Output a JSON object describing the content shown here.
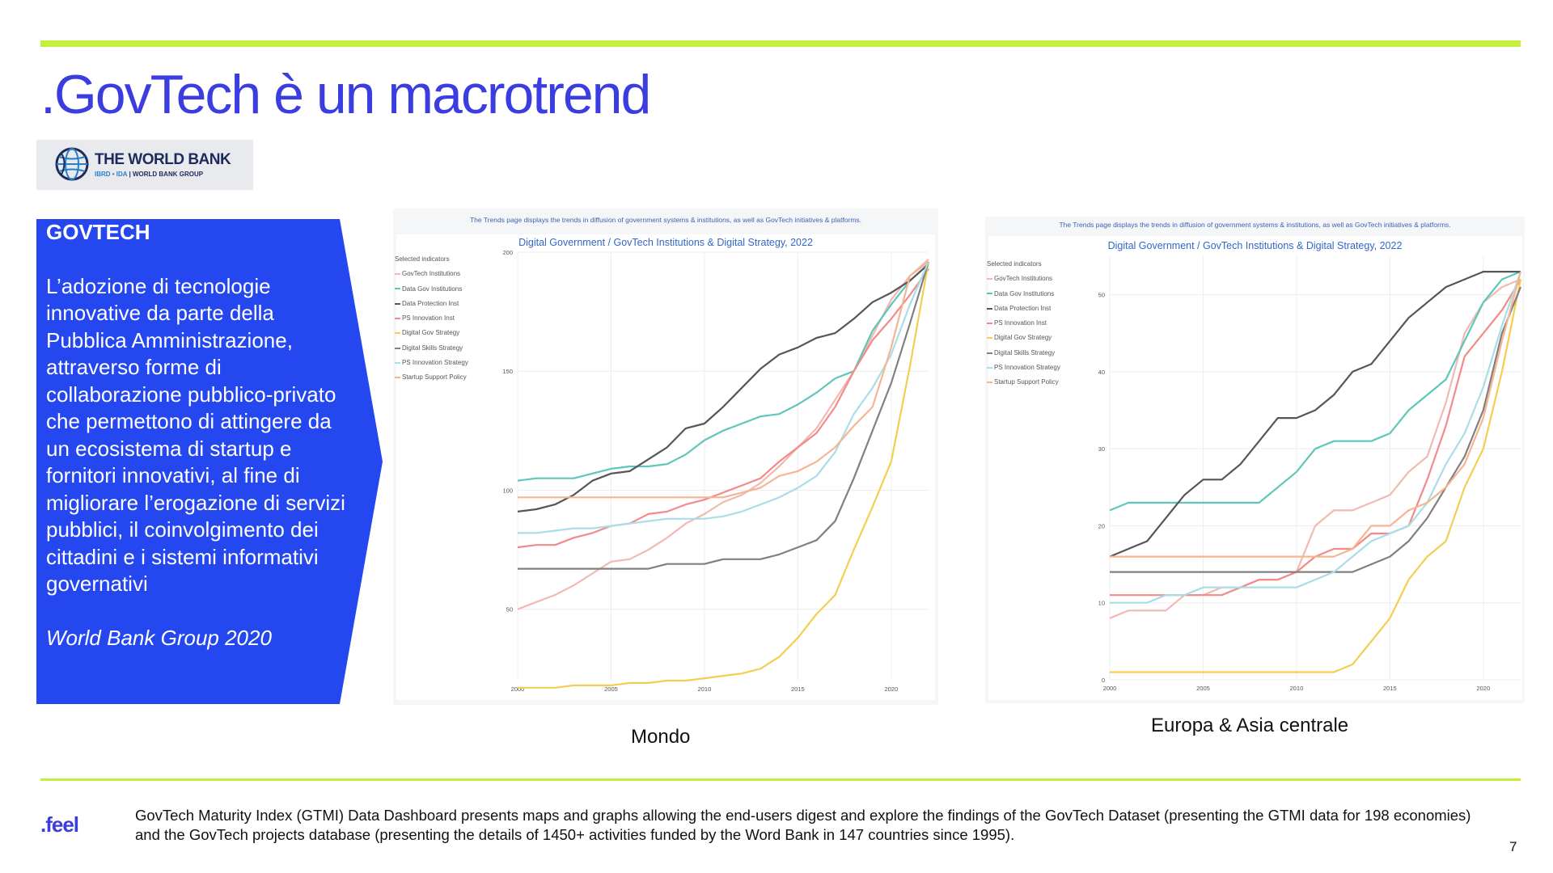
{
  "slide": {
    "title": ".GovTech è un macrotrend",
    "page_number": "7",
    "brand": ".feel",
    "footnote": "GovTech Maturity Index (GTMI) Data Dashboard presents maps and graphs allowing the end-users digest and explore the findings of the GovTech Dataset (presenting the GTMI data for 198 economies) and the GovTech projects database (presenting the details of 1450+ activities funded by the Word Bank in 147 countries since 1995)."
  },
  "logo": {
    "name": "THE WORLD BANK",
    "sub_a": "IBRD • IDA",
    "sub_b": "WORLD BANK GROUP"
  },
  "panel": {
    "heading": "GOVTECH",
    "body": "L’adozione di tecnologie innovative da parte della Pubblica Amministrazione, attraverso forme di collaborazione pubblico-privato che permettono di attingere da un ecosistema di startup e fornitori innovativi, al fine di migliorare l’erogazione di servizi pubblici, il coinvolgimento dei cittadini e i sistemi informativi governativi",
    "citation": "World Bank Group 2020",
    "color": "#2447f0"
  },
  "colors": {
    "accent_line": "#c4ef3a",
    "title": "#3b3de0"
  },
  "chart_data": [
    {
      "type": "line",
      "caption": "Mondo",
      "note": "The Trends page displays the trends in diffusion of government systems & institutions, as well as GovTech initiatives & platforms.",
      "title": "Digital Government / GovTech Institutions & Digital Strategy, 2022",
      "legend_title": "Selected indicators",
      "legend_placement": "left",
      "xlim": [
        2000,
        2022
      ],
      "ylim": [
        20,
        200
      ],
      "x_ticks": [
        "2000",
        "2005",
        "2010",
        "2015",
        "2020"
      ],
      "y_ticks": [
        "50",
        "100",
        "150",
        "200"
      ],
      "grid": true,
      "x": [
        2000,
        2001,
        2002,
        2003,
        2004,
        2005,
        2006,
        2007,
        2008,
        2009,
        2010,
        2011,
        2012,
        2013,
        2014,
        2015,
        2016,
        2017,
        2018,
        2019,
        2020,
        2021,
        2022
      ],
      "series": [
        {
          "name": "GovTech Institutions",
          "color": "#f2b9b0",
          "values": [
            50,
            53,
            56,
            60,
            65,
            70,
            71,
            75,
            80,
            86,
            90,
            95,
            98,
            103,
            110,
            118,
            126,
            138,
            150,
            165,
            180,
            190,
            197
          ]
        },
        {
          "name": "Data Gov Institutions",
          "color": "#5ec7ba",
          "values": [
            104,
            105,
            105,
            105,
            107,
            109,
            110,
            110,
            111,
            115,
            121,
            125,
            128,
            131,
            132,
            136,
            141,
            147,
            150,
            167,
            178,
            188,
            195
          ]
        },
        {
          "name": "Data Protection Inst",
          "color": "#565656",
          "values": [
            91,
            92,
            94,
            98,
            104,
            107,
            108,
            113,
            118,
            126,
            128,
            135,
            143,
            151,
            157,
            160,
            164,
            166,
            172,
            179,
            183,
            188,
            195
          ]
        },
        {
          "name": "PS Innovation Inst",
          "color": "#f28a8a",
          "values": [
            76,
            77,
            77,
            80,
            82,
            85,
            86,
            90,
            91,
            94,
            96,
            99,
            102,
            105,
            112,
            118,
            124,
            135,
            150,
            163,
            172,
            182,
            193
          ]
        },
        {
          "name": "Digital Gov Strategy",
          "color": "#f5cd50",
          "values": [
            17,
            17,
            17,
            18,
            18,
            18,
            19,
            19,
            20,
            20,
            21,
            22,
            23,
            25,
            30,
            38,
            48,
            56,
            75,
            93,
            112,
            152,
            196
          ]
        },
        {
          "name": "Digital Skills Strategy",
          "color": "#808080",
          "values": [
            67,
            67,
            67,
            67,
            67,
            67,
            67,
            67,
            69,
            69,
            69,
            71,
            71,
            71,
            73,
            76,
            79,
            87,
            105,
            125,
            145,
            170,
            196
          ]
        },
        {
          "name": "PS Innovation  Strategy",
          "color": "#a9dde8",
          "values": [
            82,
            82,
            83,
            84,
            84,
            85,
            86,
            87,
            88,
            88,
            88,
            89,
            91,
            94,
            97,
            101,
            106,
            116,
            132,
            143,
            157,
            178,
            196
          ]
        },
        {
          "name": "Startup Support Policy",
          "color": "#f6b592",
          "values": [
            97,
            97,
            97,
            97,
            97,
            97,
            97,
            97,
            97,
            97,
            97,
            97,
            99,
            101,
            106,
            108,
            112,
            118,
            127,
            135,
            160,
            190,
            196
          ]
        }
      ]
    },
    {
      "type": "line",
      "caption": "Europa & Asia centrale",
      "note": "The Trends page displays the trends in diffusion of government systems & institutions, as well as GovTech initiatives & platforms.",
      "title": "Digital Government / GovTech Institutions & Digital Strategy, 2022",
      "legend_title": "Selected indicators",
      "legend_placement": "left",
      "xlim": [
        2000,
        2022
      ],
      "ylim": [
        0,
        55
      ],
      "x_ticks": [
        "2000",
        "2005",
        "2010",
        "2015",
        "2020"
      ],
      "y_ticks": [
        "0",
        "10",
        "20",
        "30",
        "40",
        "50"
      ],
      "grid": true,
      "x": [
        2000,
        2001,
        2002,
        2003,
        2004,
        2005,
        2006,
        2007,
        2008,
        2009,
        2010,
        2011,
        2012,
        2013,
        2014,
        2015,
        2016,
        2017,
        2018,
        2019,
        2020,
        2021,
        2022
      ],
      "series": [
        {
          "name": "GovTech Institutions",
          "color": "#f2b9b0",
          "values": [
            8,
            9,
            9,
            9,
            11,
            11,
            12,
            12,
            13,
            13,
            14,
            20,
            22,
            22,
            23,
            24,
            27,
            29,
            36,
            45,
            49,
            51,
            52
          ]
        },
        {
          "name": "Data Gov Institutions",
          "color": "#5ec7ba",
          "values": [
            22,
            23,
            23,
            23,
            23,
            23,
            23,
            23,
            23,
            25,
            27,
            30,
            31,
            31,
            31,
            32,
            35,
            37,
            39,
            44,
            49,
            52,
            53
          ]
        },
        {
          "name": "Data Protection Inst",
          "color": "#565656",
          "values": [
            16,
            17,
            18,
            21,
            24,
            26,
            26,
            28,
            31,
            34,
            34,
            35,
            37,
            40,
            41,
            44,
            47,
            49,
            51,
            52,
            53,
            53,
            53
          ]
        },
        {
          "name": "PS Innovation Inst",
          "color": "#f28a8a",
          "values": [
            11,
            11,
            11,
            11,
            11,
            11,
            11,
            12,
            13,
            13,
            14,
            16,
            17,
            17,
            19,
            19,
            20,
            26,
            33,
            42,
            45,
            48,
            52
          ]
        },
        {
          "name": "Digital Gov Strategy",
          "color": "#f5cd50",
          "values": [
            1,
            1,
            1,
            1,
            1,
            1,
            1,
            1,
            1,
            1,
            1,
            1,
            1,
            2,
            5,
            8,
            13,
            16,
            18,
            25,
            30,
            40,
            52
          ]
        },
        {
          "name": "Digital Skills Strategy",
          "color": "#808080",
          "values": [
            14,
            14,
            14,
            14,
            14,
            14,
            14,
            14,
            14,
            14,
            14,
            14,
            14,
            14,
            15,
            16,
            18,
            21,
            25,
            29,
            35,
            45,
            51
          ]
        },
        {
          "name": "PS Innovation  Strategy",
          "color": "#a9dde8",
          "values": [
            10,
            10,
            10,
            11,
            11,
            12,
            12,
            12,
            12,
            12,
            12,
            13,
            14,
            16,
            18,
            19,
            20,
            23,
            28,
            32,
            38,
            46,
            53
          ]
        },
        {
          "name": "Startup Support Policy",
          "color": "#f6b592",
          "values": [
            16,
            16,
            16,
            16,
            16,
            16,
            16,
            16,
            16,
            16,
            16,
            16,
            16,
            17,
            20,
            20,
            22,
            23,
            25,
            28,
            34,
            44,
            53
          ]
        }
      ]
    }
  ]
}
